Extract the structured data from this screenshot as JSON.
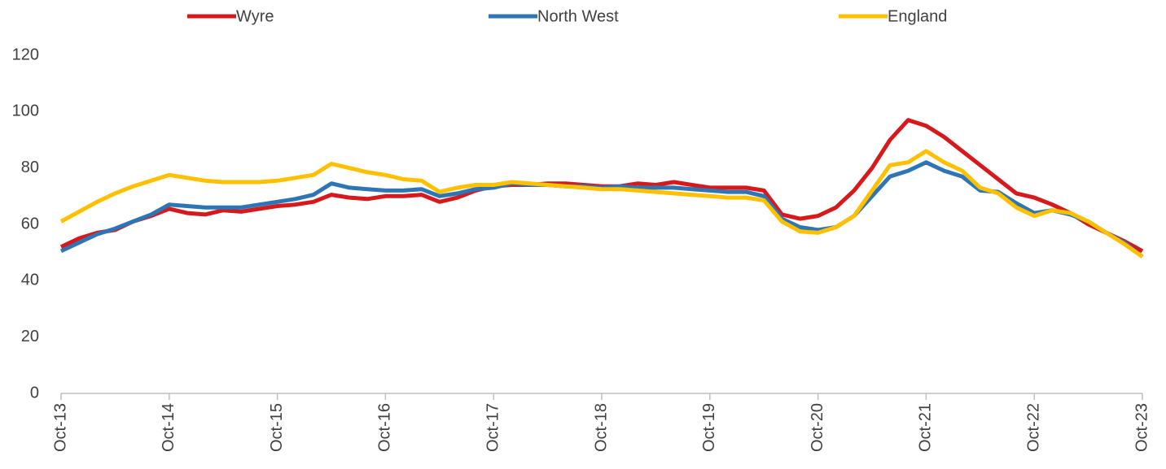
{
  "chart_data": {
    "type": "line",
    "categories": [
      "Oct-13",
      null,
      null,
      null,
      null,
      null,
      "Oct-14",
      null,
      null,
      null,
      null,
      null,
      "Oct-15",
      null,
      null,
      null,
      null,
      null,
      "Oct-16",
      null,
      null,
      null,
      null,
      null,
      "Oct-17",
      null,
      null,
      null,
      null,
      null,
      "Oct-18",
      null,
      null,
      null,
      null,
      null,
      "Oct-19",
      null,
      null,
      null,
      null,
      null,
      "Oct-20",
      null,
      null,
      null,
      null,
      null,
      "Oct-21",
      null,
      null,
      null,
      null,
      null,
      "Oct-22",
      null,
      null,
      null,
      null,
      null,
      "Oct-23"
    ],
    "series": [
      {
        "name": "Wyre",
        "color": "#d7191c",
        "values": [
          52,
          55,
          57,
          58,
          61,
          63,
          65.5,
          64,
          63.5,
          65,
          64.5,
          65.5,
          66.5,
          67,
          68,
          70.5,
          69.5,
          69,
          70,
          70,
          70.5,
          68,
          69.5,
          72,
          73.5,
          74,
          74,
          74.5,
          74.5,
          74,
          73.5,
          73.5,
          74.5,
          74,
          75,
          74,
          73,
          73,
          73,
          72,
          63.5,
          62,
          63,
          66,
          72,
          80,
          90,
          97,
          95,
          91,
          86,
          81,
          76,
          71,
          69.5,
          67,
          64,
          60,
          57,
          54,
          50.5
        ]
      },
      {
        "name": "North West",
        "color": "#2e75b6",
        "values": [
          50.5,
          53.5,
          56.5,
          58.5,
          61,
          63.5,
          67,
          66.5,
          66,
          66,
          66,
          67,
          68,
          69,
          70.5,
          74.5,
          73,
          72.5,
          72,
          72,
          72.5,
          70,
          71,
          72.5,
          73,
          74.5,
          74,
          74,
          73.5,
          73.5,
          73,
          73.5,
          73,
          73,
          73,
          72.5,
          72,
          71.5,
          71.5,
          70,
          62,
          59,
          58,
          59,
          63,
          70,
          77,
          79,
          82,
          79,
          77,
          72,
          71.5,
          67.5,
          64,
          65,
          63.5,
          61,
          57,
          53.5,
          48.5
        ]
      },
      {
        "name": "England",
        "color": "#ffc000",
        "values": [
          61,
          64.5,
          68,
          71,
          73.5,
          75.5,
          77.5,
          76.5,
          75.5,
          75,
          75,
          75,
          75.5,
          76.5,
          77.5,
          81.5,
          80,
          78.5,
          77.5,
          76,
          75.5,
          71.5,
          73,
          74,
          74,
          75,
          74.5,
          74,
          73.5,
          73,
          72.5,
          72.5,
          72,
          71.5,
          71,
          70.5,
          70,
          69.5,
          69.5,
          68.5,
          61,
          57.5,
          57,
          59,
          63,
          72,
          81,
          82,
          86,
          82,
          79,
          73,
          71,
          66,
          63,
          65,
          64,
          61,
          57,
          53,
          48.5
        ]
      }
    ],
    "ylim": [
      0,
      120
    ],
    "yticks": [
      0,
      20,
      40,
      60,
      80,
      100,
      120
    ],
    "grid": false,
    "legend": "top"
  }
}
